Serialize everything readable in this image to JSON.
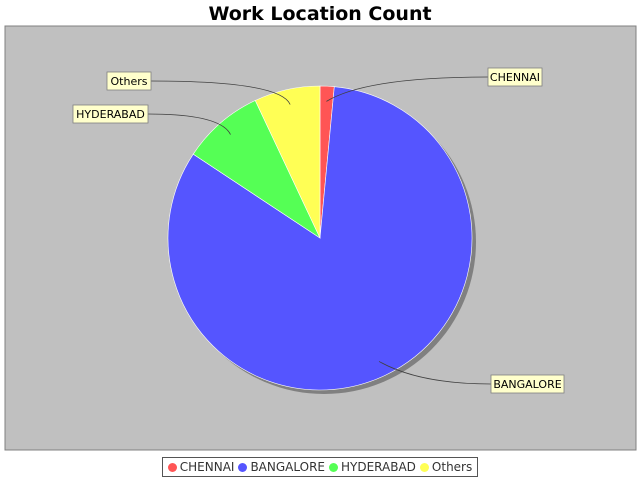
{
  "chart_data": {
    "type": "pie",
    "title": "Work Location Count",
    "categories": [
      "CHENNAI",
      "BANGALORE",
      "HYDERABAD",
      "Others"
    ],
    "values": [
      1.5,
      82.8,
      8.7,
      7.0
    ],
    "colors": [
      "#ff5555",
      "#5555ff",
      "#55ff55",
      "#ffff55"
    ],
    "plot_background": "#c0c0c0",
    "label_background": "#ffffcc",
    "legend_placement": "bottom"
  }
}
